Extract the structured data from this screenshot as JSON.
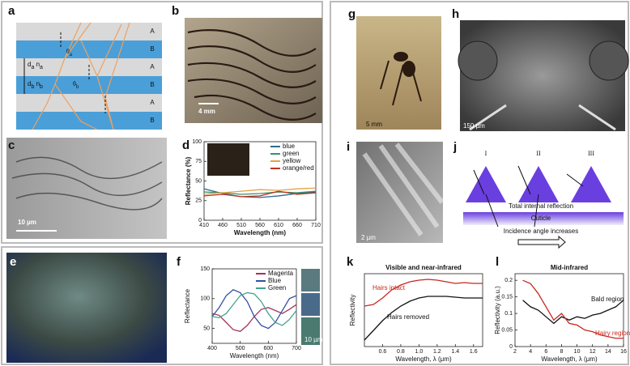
{
  "a": {
    "label": "a",
    "layers": [
      "A",
      "B",
      "A",
      "B",
      "A",
      "B"
    ],
    "thickness": [
      [
        {
          "main": "d",
          "sub": "a"
        },
        {
          "main": "n",
          "sub": "a"
        }
      ],
      [
        {
          "main": "d",
          "sub": "b"
        },
        {
          "main": "n",
          "sub": "b"
        }
      ]
    ],
    "angles": [
      {
        "main": "θ",
        "sub": "a"
      },
      {
        "main": "θ",
        "sub": "b"
      }
    ]
  },
  "b": {
    "label": "b",
    "scale": "4 mm"
  },
  "c": {
    "label": "c",
    "scale": "10 µm"
  },
  "d": {
    "label": "d",
    "chart": {
      "type": "line",
      "xlabel": "Wavelength (nm)",
      "ylabel": "Reflectance (%)",
      "x": [
        410,
        460,
        510,
        560,
        610,
        660,
        710
      ],
      "series": [
        {
          "name": "blue",
          "color": "#2b6d8c",
          "values": [
            40,
            34,
            30,
            29,
            31,
            34,
            36
          ]
        },
        {
          "name": "green",
          "color": "#3f8f6f",
          "values": [
            36,
            35,
            33,
            34,
            36,
            35,
            37
          ]
        },
        {
          "name": "yellow",
          "color": "#e3a347",
          "values": [
            33,
            35,
            37,
            39,
            38,
            40,
            41
          ]
        },
        {
          "name": "orange/red",
          "color": "#c2331f",
          "values": [
            31,
            33,
            30,
            31,
            37,
            33,
            35
          ]
        }
      ],
      "xlim": [
        410,
        710
      ],
      "ylim": [
        0,
        100
      ],
      "xticks": [
        410,
        460,
        510,
        560,
        610,
        660,
        710
      ],
      "yticks": [
        0,
        25,
        50,
        75,
        100
      ],
      "legend": "top-right"
    }
  },
  "e": {
    "label": "e"
  },
  "f": {
    "label": "f",
    "scale": "10 µm",
    "chart": {
      "type": "line",
      "xlabel": "Wavelength (nm)",
      "ylabel": "Reflectance",
      "x": [
        400,
        425,
        450,
        475,
        500,
        525,
        550,
        575,
        600,
        625,
        650,
        675,
        700
      ],
      "series": [
        {
          "name": "Magenta",
          "color": "#a3325e",
          "values": [
            75,
            72,
            60,
            48,
            45,
            55,
            70,
            82,
            85,
            80,
            75,
            82,
            90
          ]
        },
        {
          "name": "Blue",
          "color": "#3450a0",
          "values": [
            70,
            85,
            105,
            115,
            110,
            95,
            70,
            55,
            50,
            60,
            80,
            100,
            105
          ]
        },
        {
          "name": "Green",
          "color": "#44a28e",
          "values": [
            70,
            68,
            75,
            90,
            105,
            110,
            108,
            95,
            75,
            60,
            55,
            65,
            80
          ]
        }
      ],
      "xlim": [
        400,
        700
      ],
      "ylim": [
        25,
        150
      ],
      "xticks": [
        400,
        500,
        600,
        700
      ],
      "yticks": [
        50,
        100,
        150
      ],
      "legend": "top-right"
    }
  },
  "g": {
    "label": "g",
    "scale": "5 mm"
  },
  "h": {
    "label": "h",
    "scale": "150 µm"
  },
  "i": {
    "label": "i",
    "scale": "2 µm"
  },
  "j": {
    "label": "j",
    "numerals": [
      "I",
      "II",
      "III"
    ],
    "reflection": "Total internal reflection",
    "cuticle": "Cuticle",
    "incidence": "Incidence angle increases"
  },
  "k": {
    "label": "k",
    "chart": {
      "type": "line",
      "title": "Visible and near-infrared",
      "xlabel": "Wavelength, λ (μm)",
      "ylabel": "Reflectivity",
      "x": [
        0.4,
        0.5,
        0.6,
        0.7,
        0.8,
        0.9,
        1.0,
        1.1,
        1.2,
        1.3,
        1.4,
        1.5,
        1.6,
        1.7
      ],
      "series": [
        {
          "name": "Hairs intact",
          "color": "#c8281e",
          "values": [
            0.5,
            0.52,
            0.6,
            0.7,
            0.76,
            0.8,
            0.82,
            0.83,
            0.82,
            0.8,
            0.78,
            0.79,
            0.78,
            0.78
          ]
        },
        {
          "name": "Hairs removed",
          "color": "#111111",
          "values": [
            0.08,
            0.2,
            0.32,
            0.42,
            0.5,
            0.56,
            0.6,
            0.62,
            0.62,
            0.62,
            0.61,
            0.6,
            0.6,
            0.6
          ]
        }
      ],
      "xlim": [
        0.4,
        1.7
      ],
      "ylim": [
        0,
        0.9
      ],
      "xticks": [
        0.6,
        0.8,
        {
          "value": 1,
          "label": "1.0"
        },
        1.2,
        1.4,
        1.6
      ]
    }
  },
  "l": {
    "label": "l",
    "chart": {
      "type": "line",
      "title": "Mid-infrared",
      "xlabel": "Wavelength, λ (μm)",
      "ylabel": "Reflectivity (a.u.)",
      "x": [
        3,
        4,
        5,
        6,
        7,
        8,
        9,
        10,
        11,
        12,
        13,
        14,
        15,
        16
      ],
      "series": [
        {
          "name": "Bald region",
          "color": "#111111",
          "values": [
            0.14,
            0.12,
            0.11,
            0.09,
            0.07,
            0.09,
            0.08,
            0.09,
            0.085,
            0.095,
            0.1,
            0.11,
            0.12,
            0.14
          ]
        },
        {
          "name": "Hairy region",
          "color": "#c8281e",
          "values": [
            0.2,
            0.19,
            0.16,
            0.12,
            0.08,
            0.1,
            0.07,
            0.065,
            0.05,
            0.045,
            0.035,
            0.03,
            0.025,
            0.025
          ]
        }
      ],
      "xlim": [
        2,
        16
      ],
      "ylim": [
        0,
        0.22
      ],
      "xticks": [
        2,
        4,
        6,
        8,
        10,
        12,
        14,
        16
      ],
      "yticks": [
        0,
        0.05,
        0.1,
        0.15,
        0.2
      ]
    }
  }
}
